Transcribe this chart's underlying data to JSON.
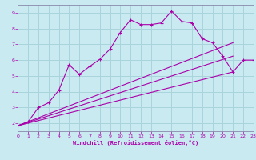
{
  "xlabel": "Windchill (Refroidissement éolien,°C)",
  "background_color": "#c8eaf0",
  "grid_color": "#aad4dc",
  "line_color": "#aa00aa",
  "spine_color": "#8888aa",
  "xlim": [
    0,
    23
  ],
  "ylim": [
    1.5,
    9.5
  ],
  "xticks": [
    0,
    1,
    2,
    3,
    4,
    5,
    6,
    7,
    8,
    9,
    10,
    11,
    12,
    13,
    14,
    15,
    16,
    17,
    18,
    19,
    20,
    21,
    22,
    23
  ],
  "yticks": [
    2,
    3,
    4,
    5,
    6,
    7,
    8,
    9
  ],
  "curve_x": [
    0,
    1,
    2,
    3,
    4,
    5,
    6,
    7,
    8,
    9,
    10,
    11,
    12,
    13,
    14,
    15,
    16,
    17,
    18,
    19,
    20,
    21,
    22,
    23
  ],
  "curve_y": [
    1.85,
    2.1,
    3.0,
    3.3,
    4.1,
    5.7,
    5.1,
    5.6,
    6.05,
    6.7,
    7.75,
    8.55,
    8.25,
    8.25,
    8.35,
    9.1,
    8.45,
    8.35,
    7.35,
    7.1,
    6.25,
    5.25,
    6.0,
    6.0
  ],
  "line1_x": [
    0,
    21
  ],
  "line1_y": [
    1.85,
    6.25
  ],
  "line2_x": [
    0,
    21
  ],
  "line2_y": [
    1.85,
    7.1
  ],
  "line3_x": [
    0,
    21
  ],
  "line3_y": [
    1.85,
    5.25
  ]
}
